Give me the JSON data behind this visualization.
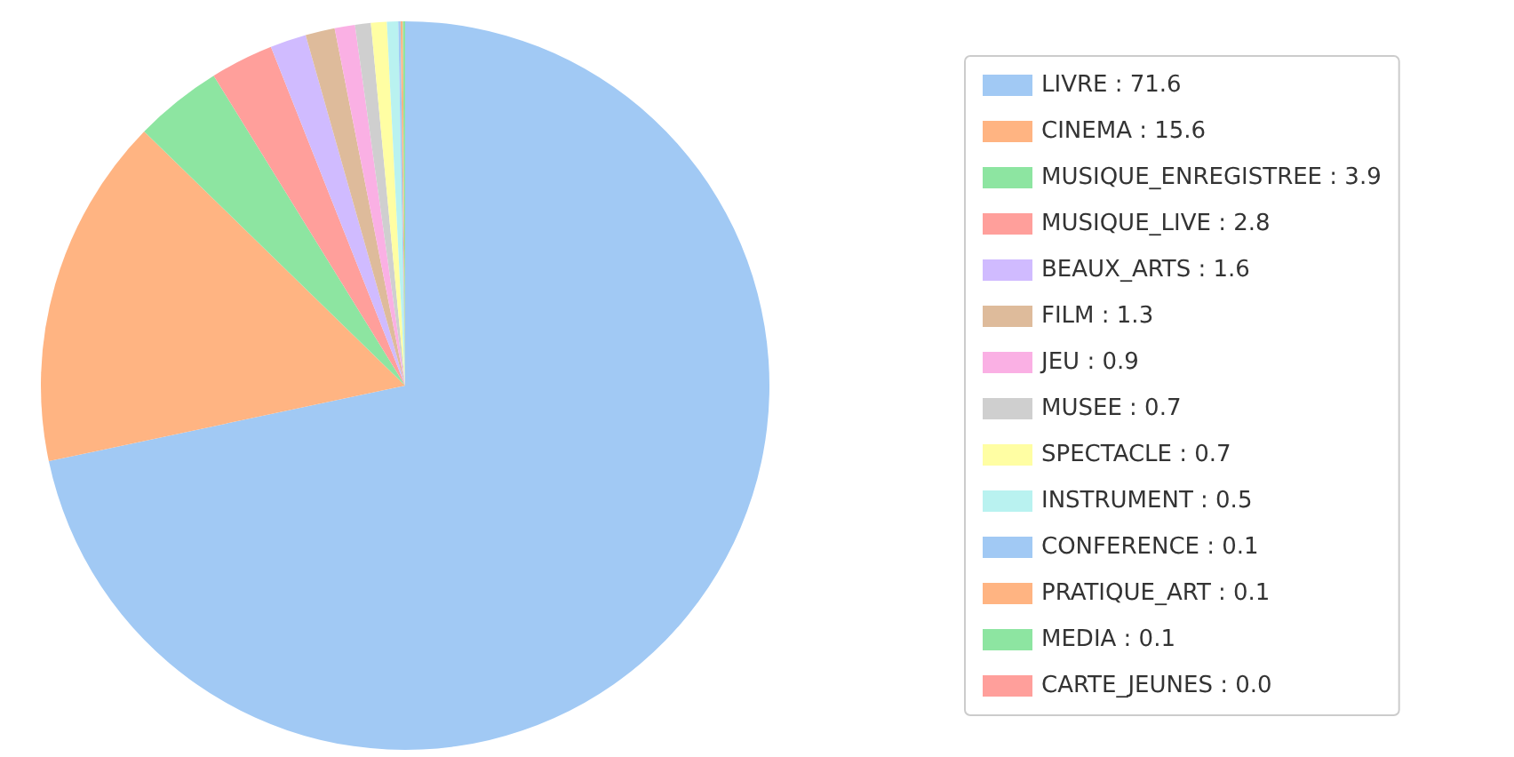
{
  "chart_data": {
    "type": "pie",
    "categories": [
      "LIVRE",
      "CINEMA",
      "MUSIQUE_ENREGISTREE",
      "MUSIQUE_LIVE",
      "BEAUX_ARTS",
      "FILM",
      "JEU",
      "MUSEE",
      "SPECTACLE",
      "INSTRUMENT",
      "CONFERENCE",
      "PRATIQUE_ART",
      "MEDIA",
      "CARTE_JEUNES"
    ],
    "values": [
      71.6,
      15.6,
      3.9,
      2.8,
      1.6,
      1.3,
      0.9,
      0.7,
      0.7,
      0.5,
      0.1,
      0.1,
      0.1,
      0
    ],
    "value_labels": [
      "71.6",
      "15.6",
      "3.9",
      "2.8",
      "1.6",
      "1.3",
      "0.9",
      "0.7",
      "0.7",
      "0.5",
      "0.1",
      "0.1",
      "0.1",
      "0.0"
    ],
    "colors": [
      "#a1c9f4",
      "#ffb482",
      "#8de5a1",
      "#ff9f9b",
      "#d0bbff",
      "#debb9b",
      "#fab0e4",
      "#cfcfcf",
      "#fffea3",
      "#b9f2f0",
      "#a1c9f4",
      "#ffb482",
      "#8de5a1",
      "#ff9f9b"
    ],
    "legend": "right"
  }
}
